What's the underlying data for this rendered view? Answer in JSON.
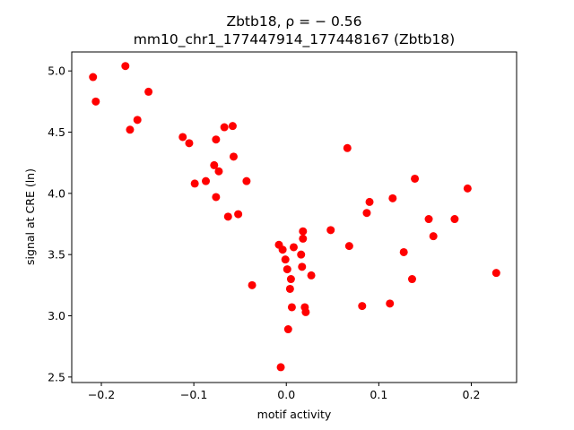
{
  "chart_data": {
    "type": "scatter",
    "title": "Zbtb18, ρ = − 0.56",
    "subtitle": "mm10_chr1_177447914_177448167 (Zbtb18)",
    "xlabel": "motif activity",
    "ylabel": "signal at CRE (ln)",
    "xlim": [
      -0.232,
      0.249
    ],
    "ylim": [
      2.455,
      5.155
    ],
    "xticks": [
      -0.2,
      -0.1,
      0.0,
      0.1,
      0.2
    ],
    "xtick_labels": [
      "−0.2",
      "−0.1",
      "0.0",
      "0.1",
      "0.2"
    ],
    "yticks": [
      2.5,
      3.0,
      3.5,
      4.0,
      4.5,
      5.0
    ],
    "ytick_labels": [
      "2.5",
      "3.0",
      "3.5",
      "4.0",
      "4.5",
      "5.0"
    ],
    "grid": false,
    "marker_color": "#ff0000",
    "points": [
      {
        "x": -0.209,
        "y": 4.95
      },
      {
        "x": -0.206,
        "y": 4.75
      },
      {
        "x": -0.174,
        "y": 5.04
      },
      {
        "x": -0.169,
        "y": 4.52
      },
      {
        "x": -0.161,
        "y": 4.6
      },
      {
        "x": -0.149,
        "y": 4.83
      },
      {
        "x": -0.112,
        "y": 4.46
      },
      {
        "x": -0.105,
        "y": 4.41
      },
      {
        "x": -0.099,
        "y": 4.08
      },
      {
        "x": -0.087,
        "y": 4.1
      },
      {
        "x": -0.078,
        "y": 4.23
      },
      {
        "x": -0.076,
        "y": 4.44
      },
      {
        "x": -0.076,
        "y": 3.97
      },
      {
        "x": -0.073,
        "y": 4.18
      },
      {
        "x": -0.067,
        "y": 4.54
      },
      {
        "x": -0.063,
        "y": 3.81
      },
      {
        "x": -0.058,
        "y": 4.55
      },
      {
        "x": -0.057,
        "y": 4.3
      },
      {
        "x": -0.052,
        "y": 3.83
      },
      {
        "x": -0.043,
        "y": 4.1
      },
      {
        "x": -0.037,
        "y": 3.25
      },
      {
        "x": -0.008,
        "y": 3.58
      },
      {
        "x": -0.006,
        "y": 2.58
      },
      {
        "x": -0.004,
        "y": 3.54
      },
      {
        "x": -0.001,
        "y": 3.46
      },
      {
        "x": 0.001,
        "y": 3.38
      },
      {
        "x": 0.002,
        "y": 2.89
      },
      {
        "x": 0.004,
        "y": 3.22
      },
      {
        "x": 0.005,
        "y": 3.3
      },
      {
        "x": 0.006,
        "y": 3.07
      },
      {
        "x": 0.008,
        "y": 3.56
      },
      {
        "x": 0.016,
        "y": 3.5
      },
      {
        "x": 0.017,
        "y": 3.4
      },
      {
        "x": 0.018,
        "y": 3.69
      },
      {
        "x": 0.018,
        "y": 3.63
      },
      {
        "x": 0.02,
        "y": 3.07
      },
      {
        "x": 0.021,
        "y": 3.03
      },
      {
        "x": 0.027,
        "y": 3.33
      },
      {
        "x": 0.048,
        "y": 3.7
      },
      {
        "x": 0.066,
        "y": 4.37
      },
      {
        "x": 0.068,
        "y": 3.57
      },
      {
        "x": 0.082,
        "y": 3.08
      },
      {
        "x": 0.087,
        "y": 3.84
      },
      {
        "x": 0.09,
        "y": 3.93
      },
      {
        "x": 0.112,
        "y": 3.1
      },
      {
        "x": 0.115,
        "y": 3.96
      },
      {
        "x": 0.127,
        "y": 3.52
      },
      {
        "x": 0.136,
        "y": 3.3
      },
      {
        "x": 0.139,
        "y": 4.12
      },
      {
        "x": 0.154,
        "y": 3.79
      },
      {
        "x": 0.159,
        "y": 3.65
      },
      {
        "x": 0.182,
        "y": 3.79
      },
      {
        "x": 0.196,
        "y": 4.04
      },
      {
        "x": 0.227,
        "y": 3.35
      }
    ]
  }
}
